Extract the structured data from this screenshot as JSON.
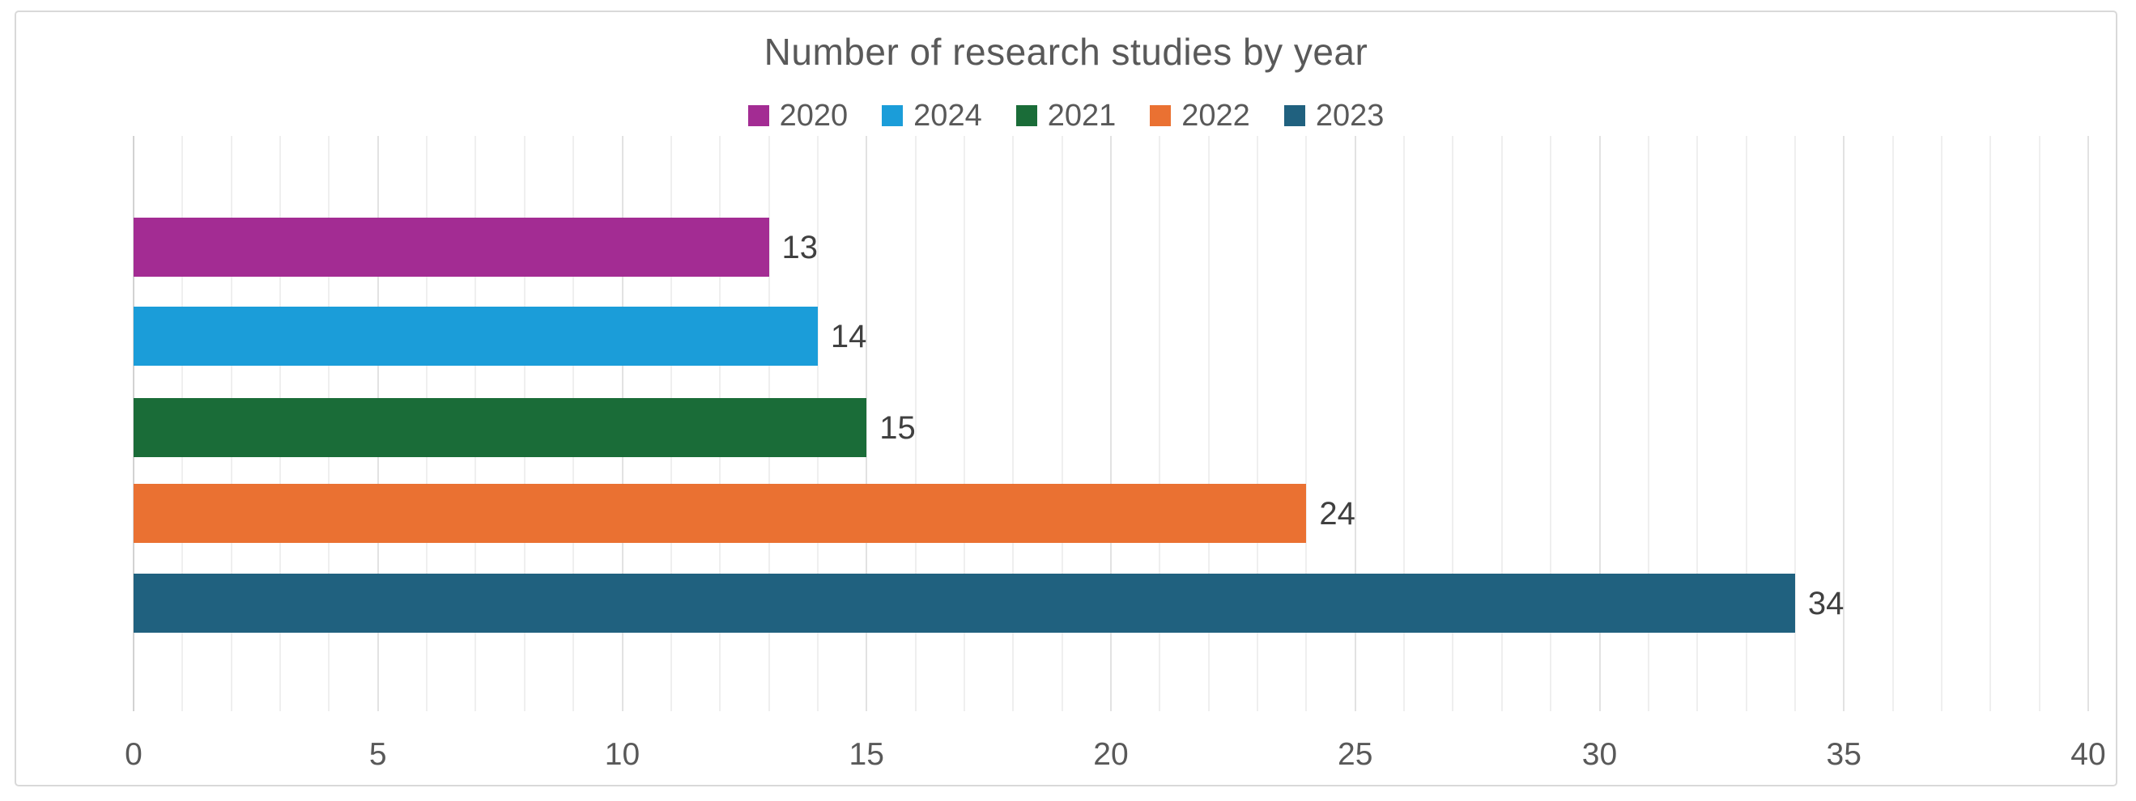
{
  "window": {
    "background": "#FFFFFF",
    "frame_border_color": "#D9D9D9"
  },
  "chart_data": {
    "type": "bar",
    "orientation": "horizontal",
    "title": "Number of research studies by year",
    "legend_position": "top",
    "categories": [
      "2020",
      "2024",
      "2021",
      "2022",
      "2023"
    ],
    "series": [
      {
        "name": "2020",
        "value": 13,
        "color": "#A32C93"
      },
      {
        "name": "2024",
        "value": 14,
        "color": "#1B9DD9"
      },
      {
        "name": "2021",
        "value": 15,
        "color": "#1A6C38"
      },
      {
        "name": "2022",
        "value": 24,
        "color": "#EA7132"
      },
      {
        "name": "2023",
        "value": 34,
        "color": "#20617F"
      }
    ],
    "data_labels": [
      "13",
      "14",
      "15",
      "24",
      "34"
    ],
    "xlabel": "",
    "ylabel": "",
    "x_axis": {
      "min": 0,
      "max": 40,
      "major_step": 5,
      "minor_step": 1,
      "tick_labels": [
        "0",
        "5",
        "10",
        "15",
        "20",
        "25",
        "30",
        "35",
        "40"
      ]
    },
    "grid": {
      "minor_vertical": true,
      "major_vertical": true
    },
    "styles": {
      "title_color": "#595959",
      "legend_text_color": "#595959",
      "axis_text_color": "#595959",
      "data_label_color": "#404040",
      "minor_gridline_color": "#EFEFEF",
      "major_gridline_color": "#E2E2E2",
      "zero_line_color": "#D2D2D2"
    }
  }
}
